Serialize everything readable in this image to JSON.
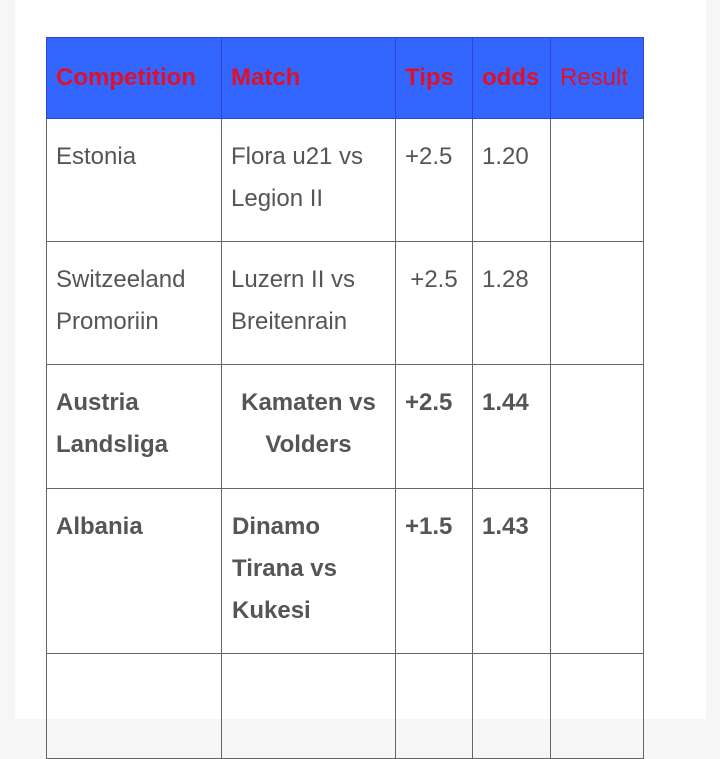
{
  "table": {
    "headers": [
      "Competition",
      "Match",
      "Tips",
      "odds",
      "Result"
    ],
    "header_bg": "#3366ff",
    "header_color": "#e0102a",
    "rows": [
      {
        "competition": "Estonia",
        "match": "Flora u21 vs Legion II",
        "tips": "+2.5",
        "odds": "1.20",
        "result": ""
      },
      {
        "competition": "Switzeeland Promoriin",
        "match": "Luzern II vs Breitenrain",
        "tips": "+2.5",
        "odds": "1.28",
        "result": ""
      },
      {
        "competition": "Austria Landsliga",
        "match": "Kamaten vs Volders",
        "tips": "+2.5",
        "odds": "1.44",
        "result": ""
      },
      {
        "competition": "Albania",
        "match": "Dinamo Tirana vs Kukesi",
        "tips": "+1.5",
        "odds": "1.43",
        "result": ""
      },
      {
        "competition": "",
        "match": "",
        "tips": "",
        "odds": "",
        "result": ""
      }
    ]
  }
}
